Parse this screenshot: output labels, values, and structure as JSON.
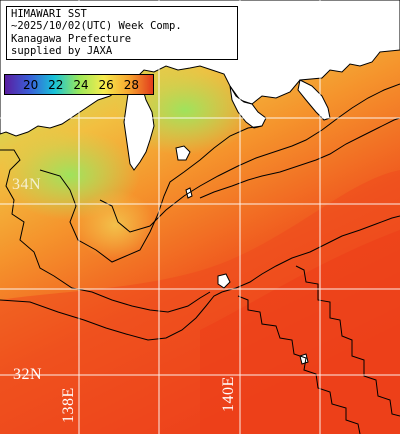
{
  "header": {
    "lines": [
      "HIMAWARI SST",
      "~2025/10/02(UTC) Week Comp.",
      "Kanagawa Prefecture",
      "supplied by JAXA"
    ]
  },
  "color_scale": {
    "ticks": [
      "20",
      "22",
      "24",
      "26",
      "28"
    ],
    "gradient": [
      "#5a1ea0",
      "#3a5fd8",
      "#18c2d8",
      "#9be85a",
      "#f6ec4e",
      "#f7a830",
      "#e23b1c"
    ]
  },
  "grid_labels": {
    "lat_upper": "34N",
    "lat_lower": "32N",
    "lon_left": "138E",
    "lon_right": "140E"
  },
  "colors": {
    "land": "#ffffff",
    "coastal_water": "#a6e45a",
    "mid_water": "#f0b53a",
    "offshore_water": "#ee4a1d",
    "contour": "#000000",
    "grid": "#ffffff"
  }
}
